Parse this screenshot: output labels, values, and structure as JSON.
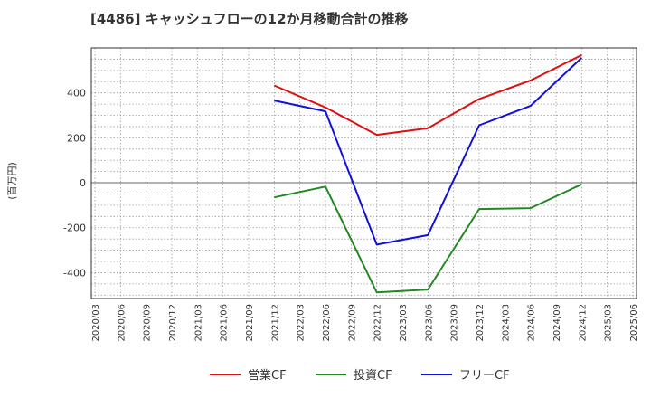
{
  "chart_data": {
    "type": "line",
    "title": "[4486]  キャッシュフローの12か月移動合計の推移",
    "ylabel": "(百万円)",
    "xlabel": "",
    "ylim": [
      -515,
      600
    ],
    "yticks": [
      -400,
      -200,
      0,
      200,
      400
    ],
    "ytick_labels": [
      "-400",
      "-200",
      "0",
      "200",
      "400"
    ],
    "x_categories": [
      "2020/03",
      "2020/06",
      "2020/09",
      "2020/12",
      "2021/03",
      "2021/06",
      "2021/09",
      "2021/12",
      "2022/03",
      "2022/06",
      "2022/09",
      "2022/12",
      "2023/03",
      "2023/06",
      "2023/09",
      "2023/12",
      "2024/03",
      "2024/06",
      "2024/09",
      "2024/12",
      "2025/03",
      "2025/06"
    ],
    "grid": true,
    "legend_position": "bottom",
    "series": [
      {
        "name": "営業CF",
        "color": "#dd1111",
        "x": [
          "2021/12",
          "2022/06",
          "2022/12",
          "2023/06",
          "2023/12",
          "2024/06",
          "2024/12"
        ],
        "values": [
          433,
          335,
          213,
          243,
          373,
          455,
          568
        ]
      },
      {
        "name": "投資CF",
        "color": "#228822",
        "x": [
          "2021/12",
          "2022/06",
          "2022/12",
          "2023/06",
          "2023/12",
          "2024/06",
          "2024/12"
        ],
        "values": [
          -65,
          -17,
          -488,
          -475,
          -117,
          -113,
          -7
        ]
      },
      {
        "name": "フリーCF",
        "color": "#1111dd",
        "x": [
          "2021/12",
          "2022/06",
          "2022/12",
          "2023/06",
          "2023/12",
          "2024/06",
          "2024/12"
        ],
        "values": [
          366,
          318,
          -275,
          -233,
          256,
          342,
          556
        ]
      }
    ]
  }
}
